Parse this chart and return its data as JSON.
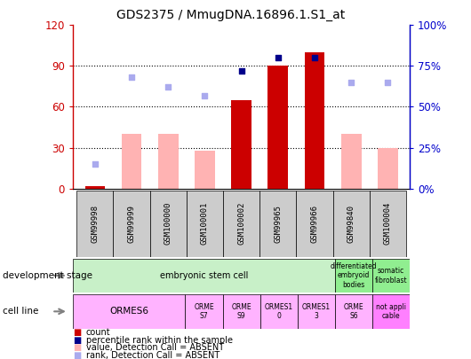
{
  "title": "GDS2375 / MmugDNA.16896.1.S1_at",
  "samples": [
    "GSM99998",
    "GSM99999",
    "GSM100000",
    "GSM100001",
    "GSM100002",
    "GSM99965",
    "GSM99966",
    "GSM99840",
    "GSM100004"
  ],
  "count_values": [
    2,
    0,
    0,
    0,
    65,
    90,
    100,
    0,
    0
  ],
  "percentile_rank": [
    null,
    null,
    null,
    null,
    72,
    80,
    80,
    null,
    null
  ],
  "absent_value": [
    2,
    40,
    40,
    28,
    0,
    0,
    0,
    40,
    30
  ],
  "absent_rank": [
    15,
    68,
    62,
    57,
    null,
    null,
    null,
    65,
    65
  ],
  "ylim_left": [
    0,
    120
  ],
  "ylim_right": [
    0,
    100
  ],
  "yticks_left": [
    0,
    30,
    60,
    90,
    120
  ],
  "yticks_right": [
    0,
    25,
    50,
    75,
    100
  ],
  "ytick_labels_left": [
    "0",
    "30",
    "60",
    "90",
    "120"
  ],
  "ytick_labels_right": [
    "0%",
    "25%",
    "50%",
    "75%",
    "100%"
  ],
  "dev_stage": [
    {
      "start": 0,
      "end": 7,
      "color": "#c8f0c8",
      "label": "embryonic stem cell"
    },
    {
      "start": 7,
      "end": 8,
      "color": "#90ee90",
      "label": "differentiated\nembryoid\nbodies"
    },
    {
      "start": 8,
      "end": 9,
      "color": "#90ee90",
      "label": "somatic\nfibroblast"
    }
  ],
  "cell_line": [
    {
      "start": 0,
      "end": 3,
      "color": "#ffb3ff",
      "label": "ORMES6"
    },
    {
      "start": 3,
      "end": 4,
      "color": "#ffb3ff",
      "label": "ORME\nS7"
    },
    {
      "start": 4,
      "end": 5,
      "color": "#ffb3ff",
      "label": "ORME\nS9"
    },
    {
      "start": 5,
      "end": 6,
      "color": "#ffb3ff",
      "label": "ORMES1\n0"
    },
    {
      "start": 6,
      "end": 7,
      "color": "#ffb3ff",
      "label": "ORMES1\n3"
    },
    {
      "start": 7,
      "end": 8,
      "color": "#ffb3ff",
      "label": "ORME\nS6"
    },
    {
      "start": 8,
      "end": 9,
      "color": "#ff80ff",
      "label": "not appli\ncable"
    }
  ],
  "colors": {
    "count_bar": "#cc0000",
    "absent_bar": "#ffb3b3",
    "percentile_dot": "#00008b",
    "absent_rank_dot": "#aaaaee",
    "left_tick": "#cc0000",
    "right_tick": "#0000cc",
    "xticklabel_bg": "#cccccc"
  },
  "legend_items": [
    {
      "color": "#cc0000",
      "label": "count"
    },
    {
      "color": "#00008b",
      "label": "percentile rank within the sample"
    },
    {
      "color": "#ffb3b3",
      "label": "value, Detection Call = ABSENT"
    },
    {
      "color": "#aaaaee",
      "label": "rank, Detection Call = ABSENT"
    }
  ]
}
